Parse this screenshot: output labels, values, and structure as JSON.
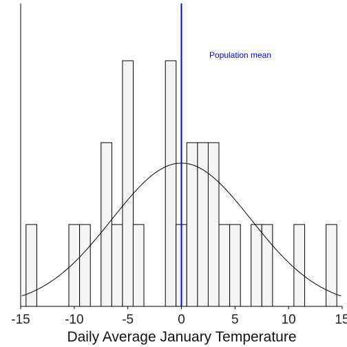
{
  "chart_data": {
    "type": "bar",
    "subtype": "histogram",
    "xlabel": "Daily Average January Temperature",
    "ylabel": "",
    "xlim": [
      -15,
      15
    ],
    "ylim": [
      0,
      3.7
    ],
    "bin_width": 1,
    "x_ticks": [
      -15,
      -10,
      -5,
      0,
      5,
      10,
      15
    ],
    "x_tick_labels": [
      "-15",
      "-10",
      "-5",
      "0",
      "5",
      "10",
      "15"
    ],
    "bins": [
      {
        "start": -14.5,
        "end": -13.5,
        "count": 1
      },
      {
        "start": -10.5,
        "end": -9.5,
        "count": 1
      },
      {
        "start": -9.5,
        "end": -8.5,
        "count": 1
      },
      {
        "start": -7.5,
        "end": -6.5,
        "count": 2
      },
      {
        "start": -6.5,
        "end": -5.5,
        "count": 1
      },
      {
        "start": -5.5,
        "end": -4.5,
        "count": 3
      },
      {
        "start": -4.5,
        "end": -3.5,
        "count": 1
      },
      {
        "start": -1.5,
        "end": -0.5,
        "count": 3
      },
      {
        "start": -0.5,
        "end": 0.5,
        "count": 1
      },
      {
        "start": 0.5,
        "end": 1.5,
        "count": 2
      },
      {
        "start": 1.5,
        "end": 2.5,
        "count": 2
      },
      {
        "start": 2.5,
        "end": 3.5,
        "count": 2
      },
      {
        "start": 3.5,
        "end": 4.5,
        "count": 1
      },
      {
        "start": 4.5,
        "end": 5.5,
        "count": 1
      },
      {
        "start": 6.5,
        "end": 7.5,
        "count": 1
      },
      {
        "start": 7.5,
        "end": 8.5,
        "count": 1
      },
      {
        "start": 10.5,
        "end": 11.5,
        "count": 1
      },
      {
        "start": 13.5,
        "end": 14.5,
        "count": 1
      }
    ],
    "normal_curve": {
      "mean": 0,
      "sd": 6.5,
      "peak": 1.75
    },
    "reference_line": {
      "x": 0,
      "color": "#0000ff",
      "label": "Population mean"
    },
    "grid": false,
    "colors": {
      "bar_fill": "#f4f4f4",
      "bar_edge": "#000000",
      "curve": "#000000",
      "mean_line": "#0000ff"
    }
  }
}
